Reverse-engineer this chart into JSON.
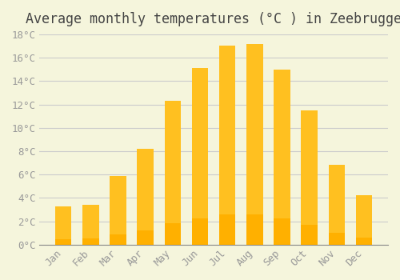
{
  "title": "Average monthly temperatures (°C ) in Zeebrugge",
  "months": [
    "Jan",
    "Feb",
    "Mar",
    "Apr",
    "May",
    "Jun",
    "Jul",
    "Aug",
    "Sep",
    "Oct",
    "Nov",
    "Dec"
  ],
  "values": [
    3.3,
    3.4,
    5.9,
    8.2,
    12.3,
    15.1,
    17.0,
    17.2,
    15.0,
    11.5,
    6.8,
    4.2
  ],
  "bar_color_top": "#FFC020",
  "bar_color_bottom": "#FFB000",
  "background_color": "#F5F5DC",
  "grid_color": "#CCCCCC",
  "ylim": [
    0,
    18
  ],
  "yticks": [
    0,
    2,
    4,
    6,
    8,
    10,
    12,
    14,
    16,
    18
  ],
  "ytick_labels": [
    "0°C",
    "2°C",
    "4°C",
    "6°C",
    "8°C",
    "10°C",
    "12°C",
    "14°C",
    "16°C",
    "18°C"
  ],
  "title_fontsize": 12,
  "tick_fontsize": 9,
  "tick_color": "#999999",
  "bar_edge_color": "none",
  "font_family": "monospace"
}
